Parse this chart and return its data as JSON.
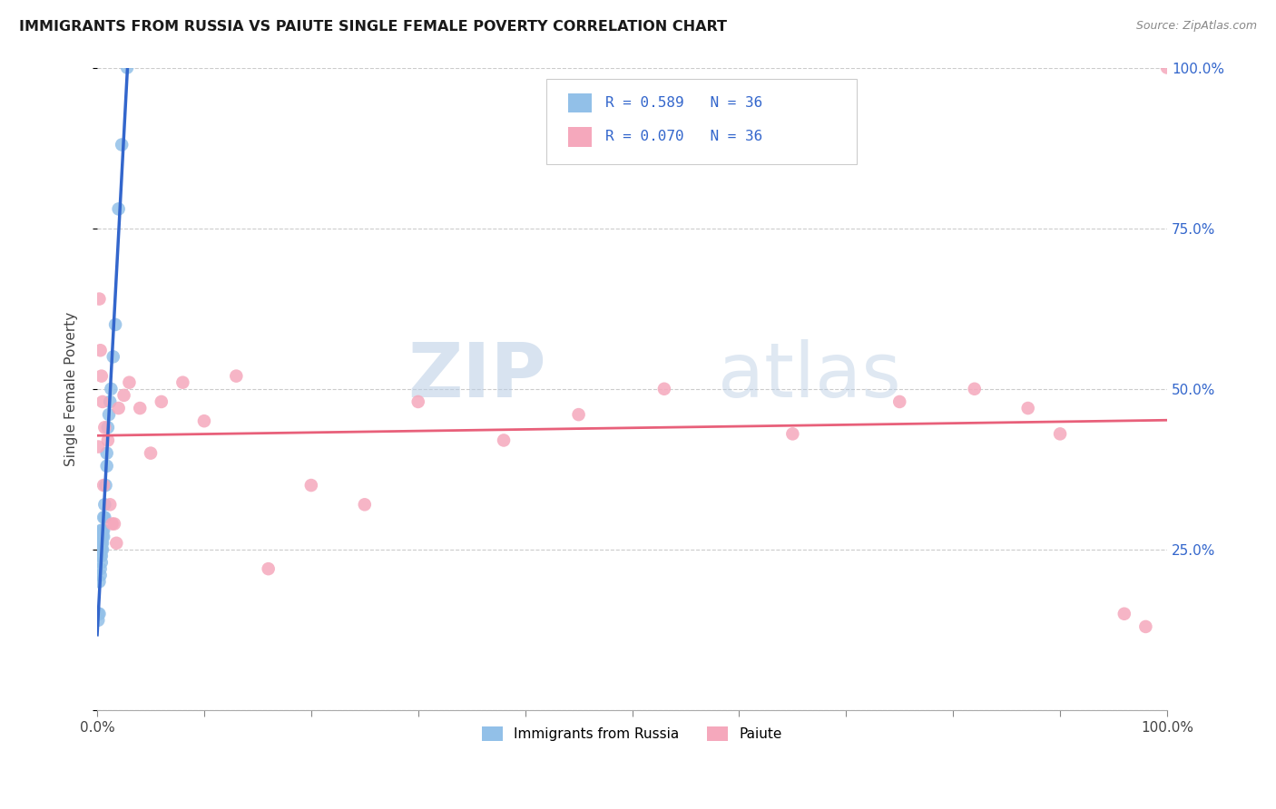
{
  "title": "IMMIGRANTS FROM RUSSIA VS PAIUTE SINGLE FEMALE POVERTY CORRELATION CHART",
  "source": "Source: ZipAtlas.com",
  "ylabel": "Single Female Poverty",
  "legend_label1": "Immigrants from Russia",
  "legend_label2": "Paiute",
  "legend_r1": "R = 0.589",
  "legend_n1": "N = 36",
  "legend_r2": "R = 0.070",
  "legend_n2": "N = 36",
  "watermark_zip": "ZIP",
  "watermark_atlas": "atlas",
  "russia_x": [
    0.001,
    0.001,
    0.002,
    0.002,
    0.003,
    0.003,
    0.003,
    0.003,
    0.003,
    0.004,
    0.004,
    0.004,
    0.004,
    0.004,
    0.004,
    0.005,
    0.005,
    0.005,
    0.005,
    0.006,
    0.006,
    0.006,
    0.007,
    0.007,
    0.008,
    0.009,
    0.009,
    0.01,
    0.011,
    0.012,
    0.013,
    0.015,
    0.017,
    0.02,
    0.023,
    0.028
  ],
  "russia_y": [
    0.14,
    0.15,
    0.15,
    0.2,
    0.21,
    0.22,
    0.24,
    0.25,
    0.26,
    0.23,
    0.24,
    0.25,
    0.26,
    0.27,
    0.28,
    0.25,
    0.26,
    0.27,
    0.28,
    0.27,
    0.28,
    0.3,
    0.3,
    0.32,
    0.35,
    0.38,
    0.4,
    0.44,
    0.46,
    0.48,
    0.5,
    0.55,
    0.6,
    0.78,
    0.88,
    1.0
  ],
  "paiute_x": [
    0.001,
    0.002,
    0.003,
    0.004,
    0.005,
    0.006,
    0.007,
    0.01,
    0.012,
    0.014,
    0.016,
    0.018,
    0.02,
    0.025,
    0.03,
    0.04,
    0.05,
    0.06,
    0.08,
    0.1,
    0.13,
    0.16,
    0.2,
    0.25,
    0.3,
    0.38,
    0.45,
    0.53,
    0.65,
    0.75,
    0.82,
    0.87,
    0.9,
    0.96,
    0.98,
    1.0
  ],
  "paiute_y": [
    0.41,
    0.64,
    0.56,
    0.52,
    0.48,
    0.35,
    0.44,
    0.42,
    0.32,
    0.29,
    0.29,
    0.26,
    0.47,
    0.49,
    0.51,
    0.47,
    0.4,
    0.48,
    0.51,
    0.45,
    0.52,
    0.22,
    0.35,
    0.32,
    0.48,
    0.42,
    0.46,
    0.5,
    0.43,
    0.48,
    0.5,
    0.47,
    0.43,
    0.15,
    0.13,
    1.0
  ],
  "russia_color": "#92c0e8",
  "paiute_color": "#f5a8bc",
  "russia_line_color": "#3366cc",
  "paiute_line_color": "#e8607a",
  "russia_dash_color": "#aaccee",
  "grid_color": "#cccccc",
  "title_color": "#1a1a1a",
  "right_axis_color": "#3366cc",
  "background_color": "#ffffff",
  "xlim": [
    0.0,
    1.0
  ],
  "ylim": [
    0.0,
    1.0
  ]
}
